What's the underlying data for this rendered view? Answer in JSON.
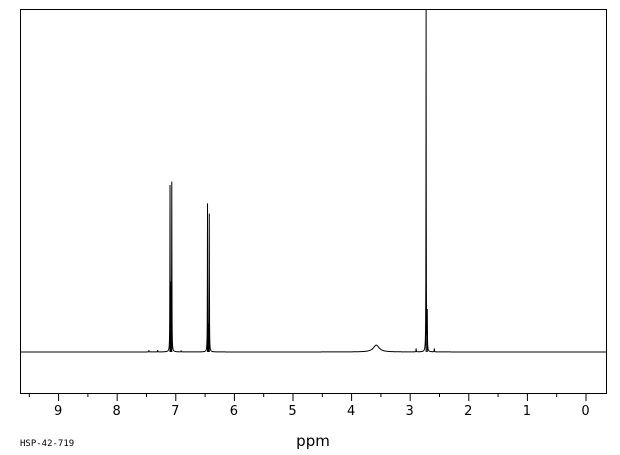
{
  "chart_data": {
    "type": "line",
    "title": "",
    "xlabel": "ppm",
    "ylabel": "",
    "xlim": [
      9.65,
      -0.35
    ],
    "ylim": [
      -0.12,
      1.0
    ],
    "x_reversed": true,
    "x_ticks": [
      9,
      8,
      7,
      6,
      5,
      4,
      3,
      2,
      1,
      0
    ],
    "x_tick_labels": [
      "9",
      "8",
      "7",
      "6",
      "5",
      "4",
      "3",
      "2",
      "1",
      "0"
    ],
    "grid": false,
    "legend": "none",
    "series": [
      {
        "peaks": [
          {
            "ppm": 7.09,
            "height": 0.48
          },
          {
            "ppm": 7.06,
            "height": 0.49
          },
          {
            "ppm": 7.075,
            "height": 0.18
          },
          {
            "ppm": 6.45,
            "height": 0.43
          },
          {
            "ppm": 6.42,
            "height": 0.4
          },
          {
            "ppm": 6.435,
            "height": 0.06
          },
          {
            "ppm": 2.72,
            "height": 1.0
          },
          {
            "ppm": 2.7,
            "height": 0.11
          },
          {
            "ppm": 2.89,
            "height": 0.01
          },
          {
            "ppm": 2.58,
            "height": 0.01
          },
          {
            "ppm": 7.45,
            "height": 0.005
          },
          {
            "ppm": 7.3,
            "height": 0.005
          },
          {
            "ppm": 6.9,
            "height": 0.004
          }
        ],
        "broad_peaks": [
          {
            "ppm": 3.57,
            "height": 0.02,
            "width": 0.06
          }
        ]
      }
    ],
    "annotations": [
      "HSP-42-719"
    ]
  },
  "colors": {
    "line": "#000000",
    "frame": "#000000",
    "background": "#ffffff"
  }
}
